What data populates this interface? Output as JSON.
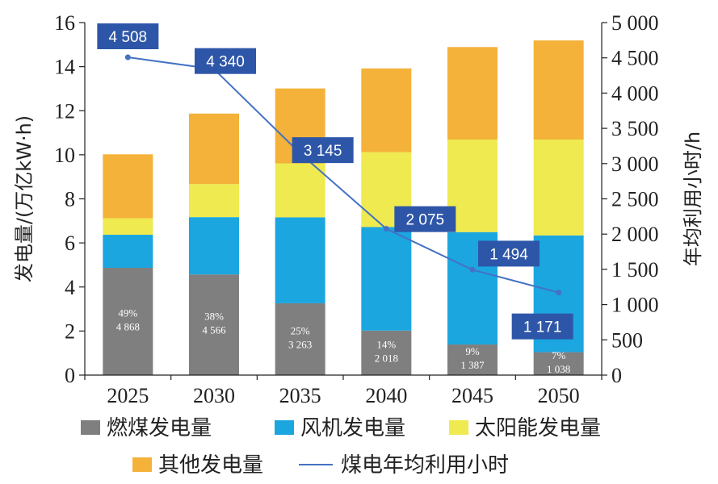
{
  "chart_data": {
    "type": "bar",
    "stacked": true,
    "categories": [
      "2025",
      "2030",
      "2035",
      "2040",
      "2045",
      "2050"
    ],
    "ylabel": "发电量/(万亿kW·h)",
    "ylim": [
      0,
      16
    ],
    "yticks": [
      0,
      2,
      4,
      6,
      8,
      10,
      12,
      14,
      16
    ],
    "y2label": "年均利用小时/h",
    "y2lim": [
      0,
      5000
    ],
    "y2ticks": [
      "0",
      "500",
      "1 000",
      "1 500",
      "2 000",
      "2 500",
      "3 000",
      "3 500",
      "4 000",
      "4 500",
      "5 000"
    ],
    "y2tick_values": [
      0,
      500,
      1000,
      1500,
      2000,
      2500,
      3000,
      3500,
      4000,
      4500,
      5000
    ],
    "grid": false,
    "legend_position": "bottom",
    "series": [
      {
        "name": "燃煤发电量",
        "color": "#7f7f7f",
        "values": [
          4.87,
          4.57,
          3.26,
          2.02,
          1.39,
          1.04
        ],
        "labels_pct": [
          "49%",
          "38%",
          "25%",
          "14%",
          "9%",
          "7%"
        ],
        "labels_val": [
          "4 868",
          "4 566",
          "3 263",
          "2 018",
          "1 387",
          "1 038"
        ]
      },
      {
        "name": "风机发电量",
        "color": "#1ba6e0",
        "values": [
          1.5,
          2.6,
          3.9,
          4.7,
          5.1,
          5.3
        ]
      },
      {
        "name": "太阳能发电量",
        "color": "#eeea50",
        "values": [
          0.75,
          1.5,
          2.45,
          3.4,
          4.2,
          4.35
        ]
      },
      {
        "name": "其他发电量",
        "color": "#f4b23a",
        "values": [
          2.9,
          3.2,
          3.4,
          3.8,
          4.2,
          4.5
        ]
      }
    ],
    "line": {
      "name": "煤电年均利用小时",
      "color": "#4472c4",
      "axis": "right",
      "values": [
        4508,
        4340,
        3145,
        2075,
        1494,
        1171
      ],
      "labels": [
        "4 508",
        "4 340",
        "3 145",
        "2 075",
        "1 494",
        "1 171"
      ],
      "label_color": "#2e56a8"
    }
  }
}
